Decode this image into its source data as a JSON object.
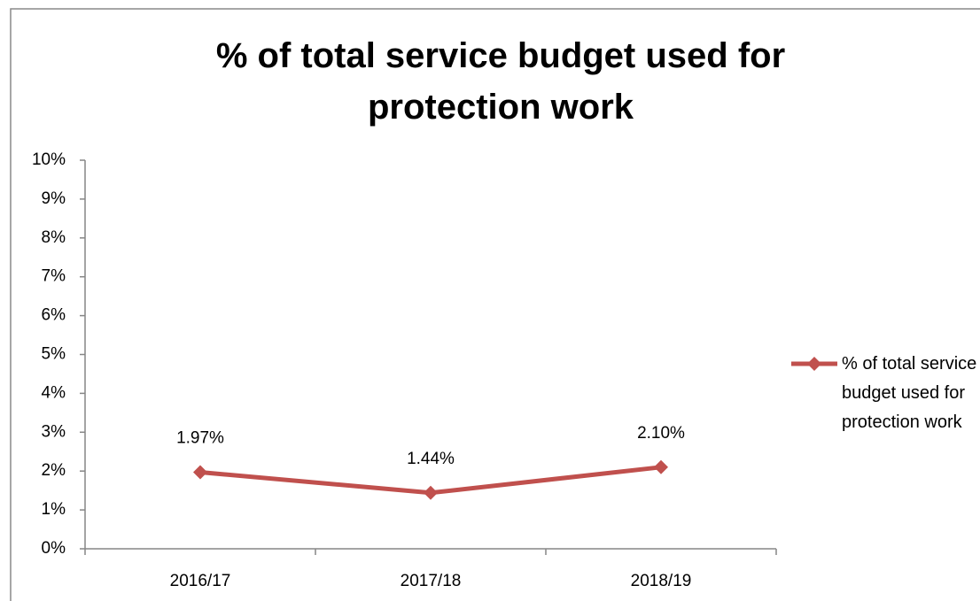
{
  "chart_data": {
    "type": "line",
    "title": "% of total service budget used for protection work",
    "categories": [
      "2016/17",
      "2017/18",
      "2018/19"
    ],
    "series": [
      {
        "name": "% of total service budget used for protection work",
        "color": "#c0504d",
        "values": [
          1.97,
          1.44,
          2.1
        ],
        "value_labels": [
          "1.97%",
          "1.44%",
          "2.10%"
        ]
      }
    ],
    "ylim": [
      0,
      10
    ],
    "yticks": [
      {
        "value": 0,
        "label": "0%"
      },
      {
        "value": 1,
        "label": "1%"
      },
      {
        "value": 2,
        "label": "2%"
      },
      {
        "value": 3,
        "label": "3%"
      },
      {
        "value": 4,
        "label": "4%"
      },
      {
        "value": 5,
        "label": "5%"
      },
      {
        "value": 6,
        "label": "6%"
      },
      {
        "value": 7,
        "label": "7%"
      },
      {
        "value": 8,
        "label": "8%"
      },
      {
        "value": 9,
        "label": "9%"
      },
      {
        "value": 10,
        "label": "10%"
      }
    ],
    "grid": false,
    "legend": "right"
  }
}
